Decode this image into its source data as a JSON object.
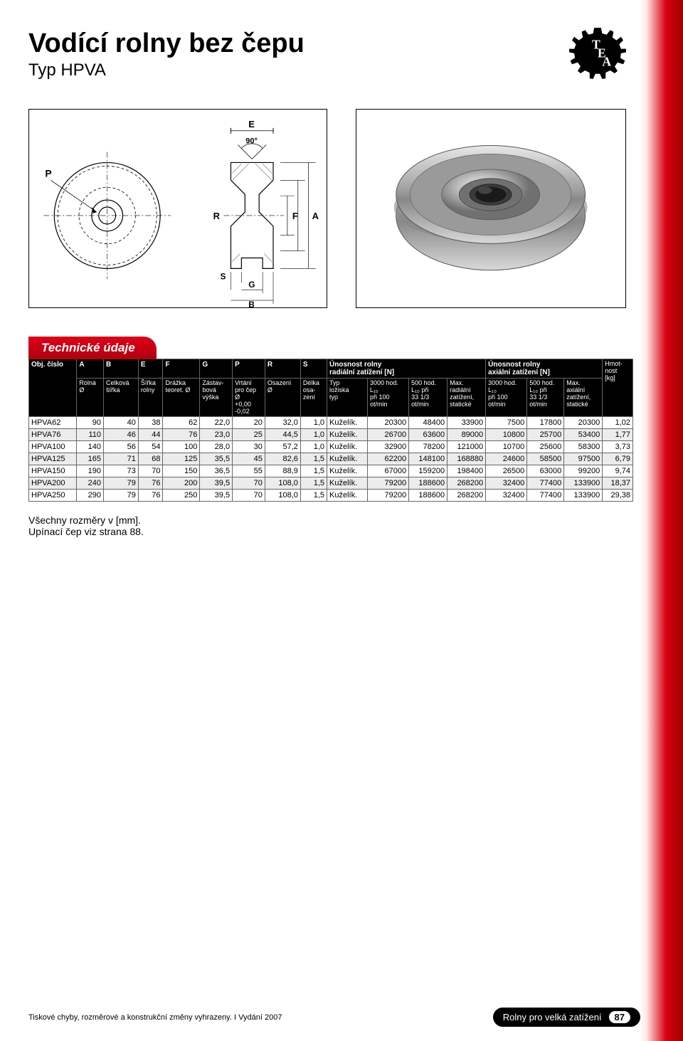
{
  "header": {
    "title": "Vodící rolny bez čepu",
    "subtitle": "Typ HPVA"
  },
  "logo": {
    "letters": [
      "T",
      "E",
      "A"
    ]
  },
  "diagram": {
    "labels": {
      "P": "P",
      "E": "E",
      "angle": "90°",
      "R": "R",
      "F": "F",
      "A": "A",
      "S": "S",
      "G": "G",
      "B": "B"
    },
    "colors": {
      "stroke": "#000",
      "dashed": "#000",
      "fill": "#fff"
    }
  },
  "tech_section": {
    "title": "Technické údaje"
  },
  "table": {
    "headerRow1": {
      "obj": "Obj. číslo",
      "A": "A",
      "B": "B",
      "E": "E",
      "F": "F",
      "G": "G",
      "P": "P",
      "R": "R",
      "S": "S",
      "radial": "Únosnost rolny\nradiální zatížení [N]",
      "axial": "Únosnost rolny\naxiální zatížení [N]"
    },
    "headerRow2": {
      "rolna": "Rolna\nØ",
      "celkova": "Celková\nšířka",
      "sirka": "Šířka\nrolny",
      "drazka": "Drážka\nteoret. Ø",
      "zastav": "Zástav-\nbová\nvýška",
      "vrtani": "Vrtání\npro čep\nØ\n+0,00\n-0,02",
      "osazeni": "Osazení\nØ",
      "delka": "Délka\nosa-\nzení",
      "typ": "Typ\nložiska\ntyp",
      "r3000": "3000 hod.\nL₁₀\npři 100\not/min",
      "r500": "500 hod.\nL₁₀ při\n33 1/3\not/min",
      "rmax": "Max.\nradiální\nzatížení,\nstatické",
      "a3000": "3000 hod.\nL₁₀\npři 100\not/min",
      "a500": "500 hod.\nL₁₀ při\n33 1/3\not/min",
      "amax": "Max.\naxiální\nzatížení,\nstatické",
      "hmot": "Hmot-\nnost\n[kg]"
    },
    "rows": [
      {
        "id": "HPVA62",
        "A": "90",
        "B": "40",
        "E": "38",
        "F": "62",
        "G": "22,0",
        "P": "20",
        "R": "32,0",
        "S": "1,0",
        "typ": "Kuželík.",
        "r3000": "20300",
        "r500": "48400",
        "rmax": "33900",
        "a3000": "7500",
        "a500": "17800",
        "amax": "20300",
        "kg": "1,02"
      },
      {
        "id": "HPVA76",
        "A": "110",
        "B": "46",
        "E": "44",
        "F": "76",
        "G": "23,0",
        "P": "25",
        "R": "44,5",
        "S": "1,0",
        "typ": "Kuželík.",
        "r3000": "26700",
        "r500": "63600",
        "rmax": "89000",
        "a3000": "10800",
        "a500": "25700",
        "amax": "53400",
        "kg": "1,77"
      },
      {
        "id": "HPVA100",
        "A": "140",
        "B": "56",
        "E": "54",
        "F": "100",
        "G": "28,0",
        "P": "30",
        "R": "57,2",
        "S": "1,0",
        "typ": "Kuželík.",
        "r3000": "32900",
        "r500": "78200",
        "rmax": "121000",
        "a3000": "10700",
        "a500": "25600",
        "amax": "58300",
        "kg": "3,73"
      },
      {
        "id": "HPVA125",
        "A": "165",
        "B": "71",
        "E": "68",
        "F": "125",
        "G": "35,5",
        "P": "45",
        "R": "82,6",
        "S": "1,5",
        "typ": "Kuželík.",
        "r3000": "62200",
        "r500": "148100",
        "rmax": "168880",
        "a3000": "24600",
        "a500": "58500",
        "amax": "97500",
        "kg": "6,79"
      },
      {
        "id": "HPVA150",
        "A": "190",
        "B": "73",
        "E": "70",
        "F": "150",
        "G": "36,5",
        "P": "55",
        "R": "88,9",
        "S": "1,5",
        "typ": "Kuželík.",
        "r3000": "67000",
        "r500": "159200",
        "rmax": "198400",
        "a3000": "26500",
        "a500": "63000",
        "amax": "99200",
        "kg": "9,74"
      },
      {
        "id": "HPVA200",
        "A": "240",
        "B": "79",
        "E": "76",
        "F": "200",
        "G": "39,5",
        "P": "70",
        "R": "108,0",
        "S": "1,5",
        "typ": "Kuželík.",
        "r3000": "79200",
        "r500": "188600",
        "rmax": "268200",
        "a3000": "32400",
        "a500": "77400",
        "amax": "133900",
        "kg": "18,37"
      },
      {
        "id": "HPVA250",
        "A": "290",
        "B": "79",
        "E": "76",
        "F": "250",
        "G": "39,5",
        "P": "70",
        "R": "108,0",
        "S": "1,5",
        "typ": "Kuželík.",
        "r3000": "79200",
        "r500": "188600",
        "rmax": "268200",
        "a3000": "32400",
        "a500": "77400",
        "amax": "133900",
        "kg": "29,38"
      }
    ]
  },
  "notes": {
    "line1": "Všechny rozměry v [mm].",
    "line2": "Upínací čep viz strana 88."
  },
  "footer": {
    "left": "Tiskové chyby, rozměrové a konstrukční změny vyhrazeny.  I  Vydání 2007",
    "pillText": "Rolny pro velká zatížení",
    "pageNum": "87"
  },
  "colors": {
    "accent": "#d90010",
    "headerBlack": "#000000",
    "rowAlt": "#ececec"
  }
}
